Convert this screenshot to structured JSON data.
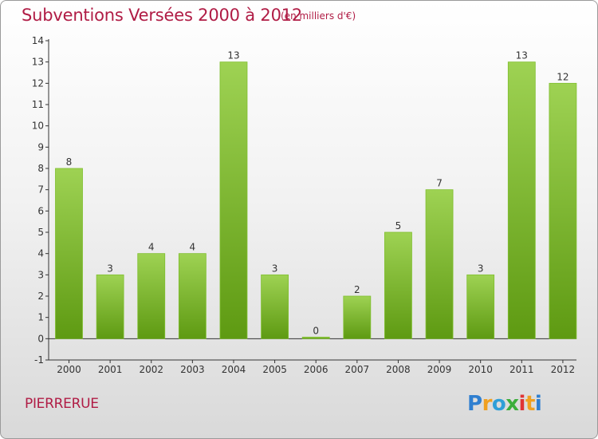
{
  "header": {
    "title": "Subventions Versées 2000 à 2012",
    "subtitle": "(en milliers d'€)"
  },
  "footer": {
    "commune": "PIERRERUE",
    "logo_text": "Proxiti"
  },
  "colors": {
    "title": "#b01c45",
    "bar_light": "#9ed253",
    "bar_dark": "#5e9a12",
    "axis": "#333333"
  },
  "chart_data": {
    "type": "bar",
    "categories": [
      "2000",
      "2001",
      "2002",
      "2003",
      "2004",
      "2005",
      "2006",
      "2007",
      "2008",
      "2009",
      "2010",
      "2011",
      "2012"
    ],
    "values": [
      8,
      3,
      4,
      4,
      13,
      3,
      0,
      2,
      5,
      7,
      3,
      13,
      12
    ],
    "data_labels": [
      "8",
      "3",
      "4",
      "4",
      "13",
      "3",
      "0",
      "2",
      "5",
      "7",
      "3",
      "13",
      "12"
    ],
    "title": "Subventions Versées 2000 à 2012",
    "xlabel": "",
    "ylabel": "",
    "ylim": [
      -1,
      14
    ],
    "yticks": [
      -1,
      0,
      1,
      2,
      3,
      4,
      5,
      6,
      7,
      8,
      9,
      10,
      11,
      12,
      13,
      14
    ],
    "grid": false,
    "legend": "none"
  }
}
